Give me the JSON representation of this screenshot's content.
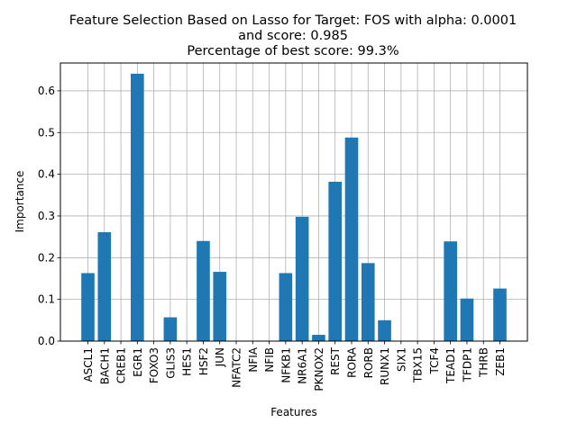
{
  "chart_data": {
    "type": "bar",
    "title_lines": [
      "Feature Selection Based on Lasso for Target: FOS with alpha: 0.0001",
      "and score: 0.985",
      "Percentage of best score: 99.3%"
    ],
    "xlabel": "Features",
    "ylabel": "Importance",
    "ylim": [
      0,
      0.6667
    ],
    "yticks": [
      0.0,
      0.1,
      0.2,
      0.3,
      0.4,
      0.5,
      0.6
    ],
    "ytick_labels": [
      "0.0",
      "0.1",
      "0.2",
      "0.3",
      "0.4",
      "0.5",
      "0.6"
    ],
    "grid": true,
    "bar_color": "#1f77b4",
    "categories": [
      "ASCL1",
      "BACH1",
      "CREB1",
      "EGR1",
      "FOXO3",
      "GLIS3",
      "HES1",
      "HSF2",
      "JUN",
      "NFATC2",
      "NFIA",
      "NFIB",
      "NFKB1",
      "NR6A1",
      "PKNOX2",
      "REST",
      "RORA",
      "RORB",
      "RUNX1",
      "SIX1",
      "TBX15",
      "TCF4",
      "TEAD1",
      "TFDP1",
      "THRB",
      "ZEB1"
    ],
    "values": [
      0.163,
      0.261,
      0.0,
      0.641,
      0.0,
      0.057,
      0.0,
      0.24,
      0.166,
      0.0,
      0.0,
      0.0,
      0.163,
      0.298,
      0.015,
      0.382,
      0.488,
      0.187,
      0.05,
      0.0,
      0.0,
      0.0,
      0.239,
      0.102,
      0.0,
      0.126
    ]
  }
}
